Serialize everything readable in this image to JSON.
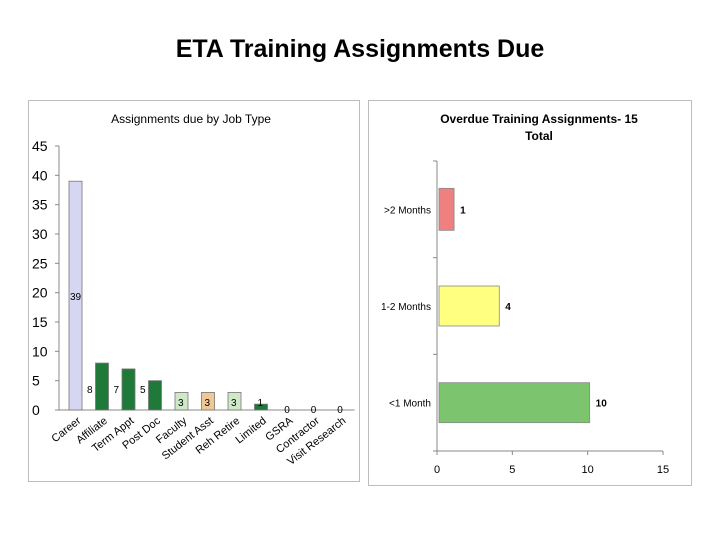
{
  "page": {
    "title": "ETA Training Assignments Due"
  },
  "chart_data": [
    {
      "type": "bar",
      "title": "Assignments due by Job Type",
      "xlabel": "",
      "ylabel": "",
      "ylim": [
        0,
        45
      ],
      "yticks": [
        0,
        5,
        10,
        15,
        20,
        25,
        30,
        35,
        40,
        45
      ],
      "categories": [
        "Career",
        "Affiliate",
        "Term Appt",
        "Post Doc",
        "Faculty",
        "Student Asst",
        "Reh Retire",
        "Limited",
        "GSRA",
        "Contractor",
        "Visit Research"
      ],
      "values": [
        39,
        8,
        7,
        5,
        3,
        3,
        3,
        1,
        0,
        0,
        0
      ],
      "colors": [
        "#d4d6f2",
        "#1f7a3a",
        "#1f7a3a",
        "#1f7a3a",
        "#cfe8c8",
        "#f0c896",
        "#cfe8c8",
        "#1f7a3a",
        "#1f7a3a",
        "#1f7a3a",
        "#1f7a3a"
      ],
      "grid": false,
      "legend": "none"
    },
    {
      "type": "bar",
      "orientation": "horizontal",
      "title": "Overdue Training Assignments- 15 Total",
      "xlabel": "",
      "ylabel": "",
      "xlim": [
        0,
        15
      ],
      "xticks": [
        0,
        5,
        10,
        15
      ],
      "categories": [
        ">2 Months",
        "1-2 Months",
        "<1 Month"
      ],
      "values": [
        1,
        4,
        10
      ],
      "colors": [
        "#f08080",
        "#ffff80",
        "#7dc46f"
      ],
      "grid": false,
      "legend": "none"
    }
  ]
}
